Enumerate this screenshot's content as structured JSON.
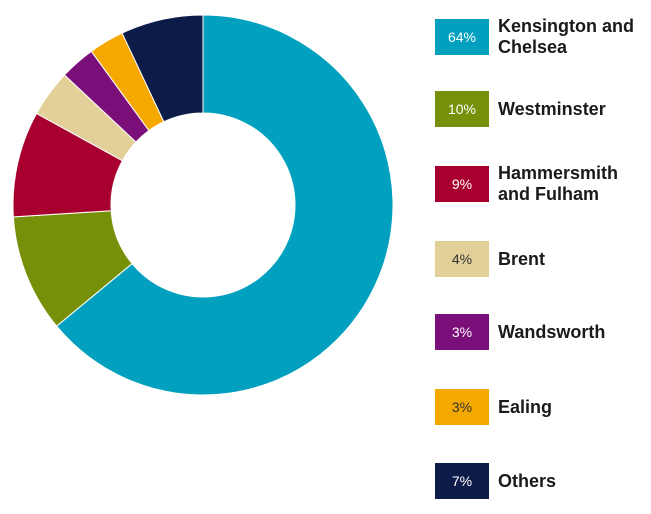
{
  "chart_data": {
    "type": "pie",
    "variant": "donut",
    "legend_position": "right",
    "slices": [
      {
        "label": "Kensington and Chelsea",
        "value_label": "64%",
        "value": 64,
        "color": "#00a0be",
        "label_color": "#ffffff"
      },
      {
        "label": "Westminster",
        "value_label": "10%",
        "value": 10,
        "color": "#76900a",
        "label_color": "#ffffff"
      },
      {
        "label": "Hammersmith and Fulham",
        "value_label": "9%",
        "value": 9,
        "color": "#a8002e",
        "label_color": "#ffffff"
      },
      {
        "label": "Brent",
        "value_label": "4%",
        "value": 4,
        "color": "#e3cf98",
        "label_color": "#333333"
      },
      {
        "label": "Wandsworth",
        "value_label": "3%",
        "value": 3,
        "color": "#7a0f7a",
        "label_color": "#ffffff"
      },
      {
        "label": "Ealing",
        "value_label": "3%",
        "value": 3,
        "color": "#f5a800",
        "label_color": "#333333"
      },
      {
        "label": "Others",
        "value_label": "7%",
        "value": 7,
        "color": "#0d1b48",
        "label_color": "#ffffff"
      }
    ]
  }
}
